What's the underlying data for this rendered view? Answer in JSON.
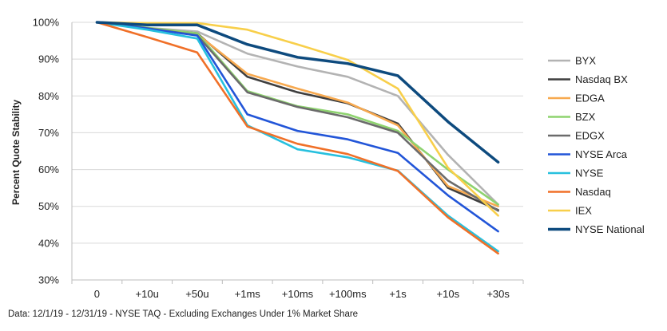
{
  "chart_data": {
    "type": "line",
    "title": "",
    "xlabel": "",
    "ylabel": "Percent Quote Stability",
    "categories": [
      "0",
      "+10u",
      "+50u",
      "+1ms",
      "+10ms",
      "+100ms",
      "+1s",
      "+10s",
      "+30s"
    ],
    "ylim": [
      30,
      100
    ],
    "y_ticks": [
      "30%",
      "40%",
      "50%",
      "60%",
      "70%",
      "80%",
      "90%",
      "100%"
    ],
    "grid": "horizontal",
    "legend_position": "right",
    "series": [
      {
        "name": "BYX",
        "color": "#b3b3b3",
        "values": [
          100,
          98.5,
          97.5,
          91.5,
          88,
          85.2,
          80,
          64,
          50.5
        ]
      },
      {
        "name": "Nasdaq BX",
        "color": "#3f3f3f",
        "values": [
          100,
          98.3,
          97,
          85.2,
          81,
          78,
          72.5,
          55,
          49
        ]
      },
      {
        "name": "EDGA",
        "color": "#f7a94f",
        "values": [
          100,
          98.2,
          96.8,
          86,
          82,
          78.2,
          72,
          55.5,
          50
        ]
      },
      {
        "name": "BZX",
        "color": "#8ed36f",
        "values": [
          100,
          98.5,
          97,
          81.3,
          77.2,
          75,
          70.5,
          60,
          50.5
        ]
      },
      {
        "name": "EDGX",
        "color": "#6b6b6b",
        "values": [
          100,
          98.4,
          96.5,
          81,
          77,
          74.2,
          70,
          57,
          48.8
        ]
      },
      {
        "name": "NYSE Arca",
        "color": "#2255d8",
        "values": [
          100,
          98.3,
          96.4,
          75,
          70.5,
          68.2,
          64.5,
          53,
          43.2
        ]
      },
      {
        "name": "NYSE",
        "color": "#27c0de",
        "values": [
          100,
          98,
          95.6,
          72,
          65.5,
          63.3,
          59.7,
          47.5,
          37.8
        ]
      },
      {
        "name": "Nasdaq",
        "color": "#f07028",
        "values": [
          100,
          96,
          91.8,
          71.7,
          67,
          64.2,
          59.6,
          47,
          37.2
        ]
      },
      {
        "name": "IEX",
        "color": "#f8cf4a",
        "values": [
          100,
          99.8,
          99.8,
          98,
          94,
          89.8,
          82,
          60.5,
          47.5
        ]
      },
      {
        "name": "NYSE National",
        "color": "#0d4a7e",
        "values": [
          100,
          99.3,
          99.3,
          94,
          90.5,
          88.8,
          85.5,
          73,
          62
        ]
      }
    ]
  },
  "footnote": "Data: 12/1/19 - 12/31/19 - NYSE TAQ - Excluding Exchanges Under 1% Market Share"
}
